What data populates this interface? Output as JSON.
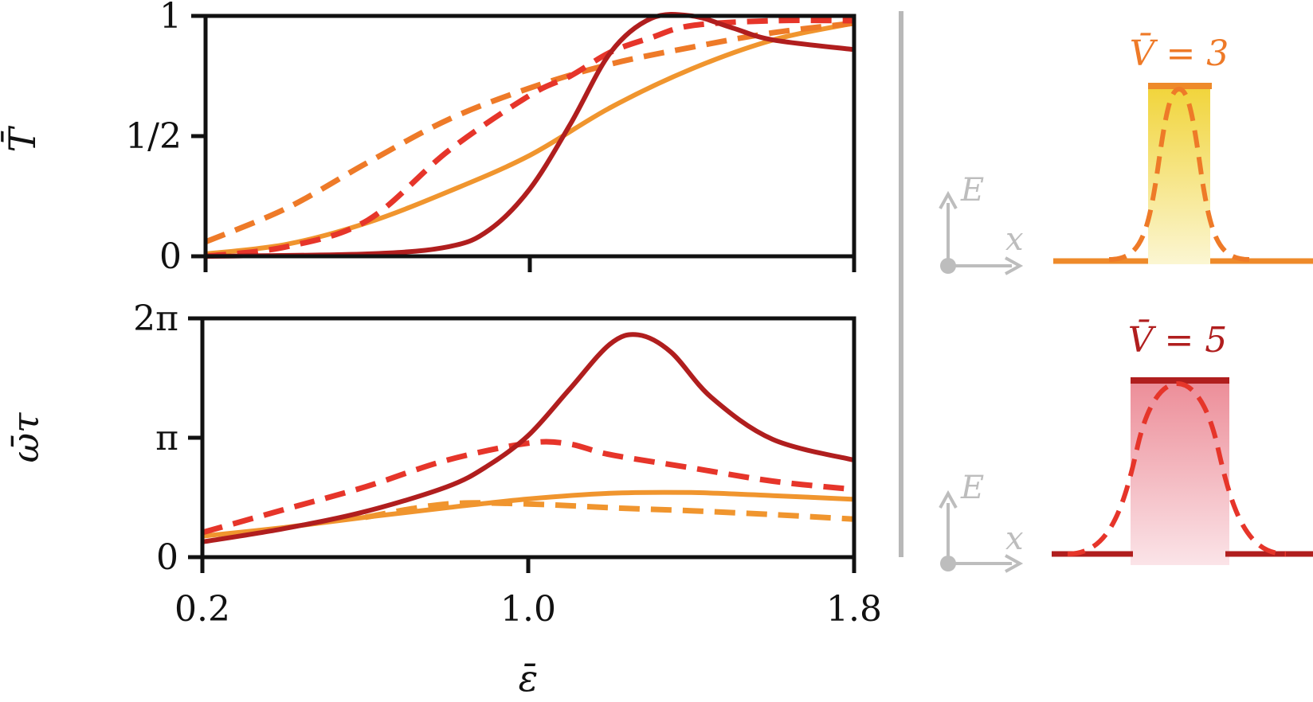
{
  "colors": {
    "orange": "#f0952e",
    "orange_dashed": "#ee7a28",
    "red_dashed": "#e6352a",
    "dark_red": "#b01e1e",
    "divider": "#b8b8b8",
    "inset_axis": "#bdbdbd",
    "well_yellow_top": "#f1d43a",
    "well_yellow_bottom": "#fbf6d2",
    "well_pink_top": "#ec8d98",
    "well_pink_bottom": "#fbe4e8"
  },
  "chart_data": [
    {
      "type": "line",
      "panel": "top",
      "ylabel": "T̄",
      "xlim": [
        0.2,
        1.8
      ],
      "ylim": [
        0,
        1
      ],
      "yticks": [
        {
          "value": 0,
          "label": "0"
        },
        {
          "value": 0.5,
          "label": "1/2"
        },
        {
          "value": 1,
          "label": "1"
        }
      ],
      "xticks": [
        0.2,
        1.0,
        1.8
      ],
      "series": [
        {
          "color": "orange",
          "style": "solid",
          "x": [
            0.2,
            0.4,
            0.6,
            0.8,
            1.0,
            1.2,
            1.4,
            1.6,
            1.8
          ],
          "y": [
            0.01,
            0.05,
            0.14,
            0.27,
            0.42,
            0.62,
            0.78,
            0.9,
            0.97
          ]
        },
        {
          "color": "orange_dashed",
          "style": "dashed",
          "x": [
            0.2,
            0.4,
            0.6,
            0.8,
            1.0,
            1.2,
            1.4,
            1.6,
            1.8
          ],
          "y": [
            0.06,
            0.2,
            0.39,
            0.57,
            0.7,
            0.8,
            0.87,
            0.93,
            0.97
          ]
        },
        {
          "color": "red_dashed",
          "style": "dashed",
          "x": [
            0.2,
            0.4,
            0.6,
            0.8,
            1.0,
            1.1,
            1.2,
            1.3,
            1.4,
            1.6,
            1.8
          ],
          "y": [
            0.0,
            0.04,
            0.15,
            0.44,
            0.67,
            0.75,
            0.85,
            0.91,
            0.96,
            0.98,
            0.98
          ]
        },
        {
          "color": "dark_red",
          "style": "solid",
          "x": [
            0.2,
            0.6,
            0.8,
            0.9,
            1.0,
            1.1,
            1.2,
            1.3,
            1.4,
            1.5,
            1.6,
            1.8
          ],
          "y": [
            0.0,
            0.01,
            0.04,
            0.11,
            0.28,
            0.55,
            0.85,
            0.99,
            1.0,
            0.95,
            0.9,
            0.86
          ]
        }
      ]
    },
    {
      "type": "line",
      "panel": "bottom",
      "ylabel": "ω̄τ",
      "xlabel": "ε̄",
      "xlim": [
        0.2,
        1.8
      ],
      "ylim": [
        0,
        6.2832
      ],
      "yticks": [
        {
          "value": 0,
          "label": "0"
        },
        {
          "value": 3.1416,
          "label": "π"
        },
        {
          "value": 6.2832,
          "label": "2π"
        }
      ],
      "xticks": [
        {
          "value": 0.2,
          "label": "0.2"
        },
        {
          "value": 1.0,
          "label": "1.0"
        },
        {
          "value": 1.8,
          "label": "1.8"
        }
      ],
      "series": [
        {
          "color": "orange",
          "style": "solid",
          "x": [
            0.2,
            0.4,
            0.6,
            0.8,
            1.0,
            1.2,
            1.4,
            1.6,
            1.8
          ],
          "y": [
            0.55,
            0.78,
            1.05,
            1.3,
            1.53,
            1.68,
            1.7,
            1.62,
            1.52
          ]
        },
        {
          "color": "orange",
          "style": "dashed",
          "x": [
            0.6,
            0.8,
            1.0,
            1.2,
            1.4,
            1.6,
            1.8
          ],
          "y": [
            1.05,
            1.4,
            1.4,
            1.3,
            1.22,
            1.12,
            1.0
          ]
        },
        {
          "color": "red_dashed",
          "style": "dashed",
          "x": [
            0.2,
            0.4,
            0.6,
            0.8,
            1.0,
            1.1,
            1.2,
            1.4,
            1.6,
            1.8
          ],
          "y": [
            0.65,
            1.25,
            1.85,
            2.55,
            3.0,
            2.98,
            2.7,
            2.35,
            2.0,
            1.78
          ]
        },
        {
          "color": "dark_red",
          "style": "solid",
          "x": [
            0.2,
            0.4,
            0.6,
            0.8,
            0.9,
            1.0,
            1.1,
            1.2,
            1.27,
            1.35,
            1.45,
            1.6,
            1.8
          ],
          "y": [
            0.4,
            0.75,
            1.2,
            1.85,
            2.4,
            3.2,
            4.4,
            5.6,
            5.85,
            5.4,
            4.2,
            3.1,
            2.55
          ]
        }
      ]
    }
  ],
  "insets": [
    {
      "title": "V̄ = 3",
      "axis_y": "E",
      "axis_x": "x",
      "color": "orange_dashed"
    },
    {
      "title": "V̄ = 5",
      "axis_y": "E",
      "axis_x": "x",
      "color": "dark_red"
    }
  ]
}
